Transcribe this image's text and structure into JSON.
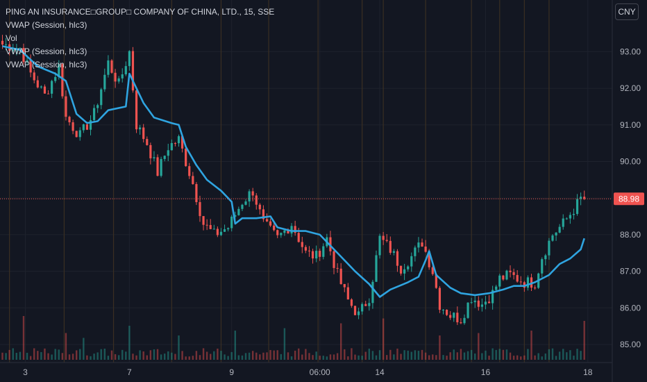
{
  "legend": {
    "title": "PING AN INSURANCE□GROUP□ COMPANY OF CHINA, LTD., 15, SSE",
    "vwap1": "VWAP (Session, hlc3)",
    "vol": "Vol",
    "vwap2": "VWAP (Session, hlc3)",
    "vwap3": "VWAP (Session, hlc3)"
  },
  "currency": "CNY",
  "colors": {
    "background": "#131722",
    "up": "#26a69a",
    "down": "#ef5350",
    "vwap": "#2fa4e0",
    "grid": "#1e222d",
    "session_line": "#3a2f22",
    "price_line": "#ef5350",
    "axis_text": "#b2b5be"
  },
  "chart_data": {
    "type": "candlestick",
    "title": "PING AN INSURANCE□GROUP□ COMPANY OF CHINA, LTD., 15, SSE",
    "interval": "15",
    "exchange": "SSE",
    "currency": "CNY",
    "y_ticks": [
      85.0,
      86.0,
      87.0,
      88.0,
      89.0,
      90.0,
      91.0,
      92.0,
      93.0
    ],
    "ylim": [
      84.8,
      94.2
    ],
    "x_ticks": [
      "3",
      "7",
      "9",
      "06:00",
      "14",
      "16",
      "18"
    ],
    "last_price": 88.98,
    "grid": true,
    "legend_position": "top-left",
    "price_anchors": [
      [
        0,
        93.2
      ],
      [
        5,
        93.1
      ],
      [
        8,
        92.4
      ],
      [
        12,
        91.8
      ],
      [
        16,
        92.6
      ],
      [
        18,
        91.2
      ],
      [
        22,
        90.7
      ],
      [
        26,
        91.3
      ],
      [
        30,
        92.7
      ],
      [
        33,
        92.1
      ],
      [
        36,
        93.0
      ],
      [
        38,
        91.0
      ],
      [
        41,
        90.5
      ],
      [
        44,
        89.7
      ],
      [
        47,
        90.4
      ],
      [
        50,
        90.6
      ],
      [
        54,
        89.4
      ],
      [
        57,
        88.3
      ],
      [
        60,
        88.0
      ],
      [
        64,
        88.2
      ],
      [
        68,
        88.9
      ],
      [
        71,
        89.2
      ],
      [
        74,
        88.3
      ],
      [
        78,
        87.9
      ],
      [
        82,
        88.3
      ],
      [
        86,
        87.5
      ],
      [
        89,
        87.4
      ],
      [
        92,
        87.9
      ],
      [
        95,
        86.9
      ],
      [
        98,
        86.2
      ],
      [
        101,
        85.8
      ],
      [
        104,
        86.3
      ],
      [
        107,
        87.9
      ],
      [
        110,
        87.6
      ],
      [
        113,
        87.1
      ],
      [
        116,
        87.4
      ],
      [
        119,
        87.8
      ],
      [
        122,
        87.0
      ],
      [
        124,
        86.1
      ],
      [
        127,
        85.8
      ],
      [
        130,
        85.7
      ],
      [
        133,
        86.3
      ],
      [
        136,
        86.1
      ],
      [
        139,
        86.4
      ],
      [
        141,
        86.8
      ],
      [
        144,
        86.9
      ],
      [
        148,
        86.7
      ],
      [
        151,
        86.7
      ],
      [
        153,
        87.4
      ],
      [
        156,
        88.0
      ],
      [
        159,
        88.3
      ],
      [
        162,
        88.7
      ],
      [
        164,
        88.98
      ]
    ],
    "vwap_anchors": [
      [
        0,
        93.15
      ],
      [
        5,
        93.05
      ],
      [
        10,
        92.6
      ],
      [
        15,
        92.4
      ],
      [
        18,
        92.2
      ],
      [
        21,
        91.3
      ],
      [
        24,
        91.05
      ],
      [
        27,
        91.1
      ],
      [
        30,
        91.4
      ],
      [
        35,
        91.5
      ],
      [
        36,
        92.4
      ],
      [
        40,
        91.6
      ],
      [
        43,
        91.2
      ],
      [
        48,
        91.05
      ],
      [
        50,
        91.0
      ],
      [
        52,
        90.4
      ],
      [
        55,
        89.9
      ],
      [
        58,
        89.5
      ],
      [
        62,
        89.2
      ],
      [
        65,
        88.9
      ],
      [
        66,
        88.3
      ],
      [
        68,
        88.45
      ],
      [
        72,
        88.45
      ],
      [
        76,
        88.5
      ],
      [
        78,
        88.2
      ],
      [
        82,
        88.1
      ],
      [
        86,
        88.1
      ],
      [
        90,
        88.0
      ],
      [
        96,
        87.4
      ],
      [
        100,
        87.0
      ],
      [
        104,
        86.65
      ],
      [
        107,
        86.3
      ],
      [
        110,
        86.5
      ],
      [
        115,
        86.7
      ],
      [
        118,
        86.85
      ],
      [
        120,
        87.3
      ],
      [
        121,
        87.55
      ],
      [
        123,
        86.9
      ],
      [
        127,
        86.55
      ],
      [
        130,
        86.4
      ],
      [
        134,
        86.35
      ],
      [
        138,
        86.4
      ],
      [
        142,
        86.5
      ],
      [
        145,
        86.6
      ],
      [
        148,
        86.6
      ],
      [
        151,
        86.7
      ],
      [
        155,
        86.9
      ],
      [
        158,
        87.2
      ],
      [
        161,
        87.35
      ],
      [
        164,
        87.6
      ],
      [
        165,
        87.9
      ]
    ],
    "session_breaks": [
      2,
      17.5,
      31.5,
      48,
      62,
      75.5,
      89.5,
      102,
      108,
      120,
      133,
      141,
      148,
      155
    ],
    "volume_spikes": [
      [
        6,
        0.9
      ],
      [
        18,
        0.55
      ],
      [
        23,
        0.45
      ],
      [
        36,
        0.7
      ],
      [
        50,
        0.5
      ],
      [
        66,
        0.6
      ],
      [
        80,
        0.65
      ],
      [
        96,
        0.75
      ],
      [
        108,
        0.85
      ],
      [
        124,
        0.5
      ],
      [
        135,
        0.55
      ],
      [
        150,
        0.6
      ],
      [
        165,
        0.8
      ]
    ],
    "volume_base": 0.17
  }
}
